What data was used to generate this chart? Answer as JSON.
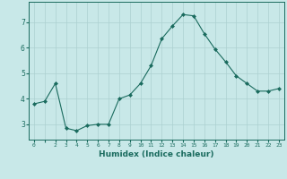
{
  "x": [
    0,
    1,
    2,
    3,
    4,
    5,
    6,
    7,
    8,
    9,
    10,
    11,
    12,
    13,
    14,
    15,
    16,
    17,
    18,
    19,
    20,
    21,
    22,
    23
  ],
  "y": [
    3.8,
    3.9,
    4.6,
    2.85,
    2.75,
    2.95,
    3.0,
    3.0,
    4.0,
    4.15,
    4.6,
    5.3,
    6.35,
    6.85,
    7.3,
    7.25,
    6.55,
    5.95,
    5.45,
    4.9,
    4.6,
    4.3,
    4.3,
    4.4
  ],
  "line_color": "#1a6b5e",
  "marker_color": "#1a6b5e",
  "bg_color": "#c8e8e8",
  "grid_color": "#acd0d0",
  "xlabel": "Humidex (Indice chaleur)",
  "xlim": [
    -0.5,
    23.5
  ],
  "ylim": [
    2.4,
    7.8
  ],
  "yticks": [
    3,
    4,
    5,
    6,
    7
  ],
  "xticks": [
    0,
    1,
    2,
    3,
    4,
    5,
    6,
    7,
    8,
    9,
    10,
    11,
    12,
    13,
    14,
    15,
    16,
    17,
    18,
    19,
    20,
    21,
    22,
    23
  ],
  "xtick_labels": [
    "0",
    "",
    "2",
    "3",
    "4",
    "5",
    "6",
    "7",
    "8",
    "9",
    "10",
    "11",
    "12",
    "13",
    "14",
    "15",
    "16",
    "17",
    "18",
    "19",
    "20",
    "21",
    "22",
    "23"
  ]
}
